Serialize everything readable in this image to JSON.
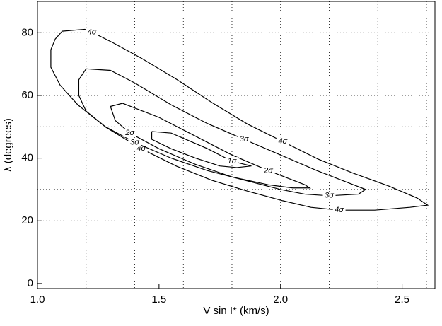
{
  "chart_data": {
    "type": "contour",
    "x_label": "V sin I* (km/s)",
    "y_label": "λ (degrees)",
    "xlim": [
      1.0,
      2.635
    ],
    "ylim": [
      -1.6,
      90
    ],
    "xticks": [
      {
        "value": 1.0,
        "label": "1.0"
      },
      {
        "value": 1.5,
        "label": "1.5"
      },
      {
        "value": 2.0,
        "label": "2.0"
      },
      {
        "value": 2.5,
        "label": "2.5"
      }
    ],
    "yticks": [
      0,
      20,
      40,
      60,
      80
    ],
    "xgrid": [
      1.2,
      1.4,
      1.6,
      1.8,
      2.0,
      2.2,
      2.4,
      2.6
    ],
    "ygrid": [
      10,
      20,
      30,
      40,
      50,
      60,
      70,
      80
    ],
    "grid": true,
    "series": [
      {
        "name": "4σ",
        "color": "#000000",
        "x": [
          1.195,
          1.224,
          1.311,
          1.427,
          1.573,
          1.718,
          1.863,
          2.009,
          2.154,
          2.299,
          2.445,
          2.561,
          2.605,
          2.532,
          2.387,
          2.241,
          2.125,
          2.009,
          1.863,
          1.718,
          1.573,
          1.427,
          1.282,
          1.166,
          1.093,
          1.055,
          1.055,
          1.073,
          1.102,
          1.195
        ],
        "y": [
          81.1,
          80.2,
          76.8,
          71.9,
          65.1,
          57.7,
          50.9,
          45.3,
          39.7,
          35.2,
          31.1,
          27.3,
          25.0,
          24.3,
          23.4,
          23.4,
          24.3,
          26.4,
          29.5,
          32.9,
          37.4,
          43.0,
          49.8,
          57.0,
          63.3,
          69.0,
          74.6,
          78.0,
          80.5,
          81.1
        ]
      },
      {
        "name": "3σ",
        "color": "#000000",
        "x": [
          1.2,
          1.3,
          1.4,
          1.55,
          1.7,
          1.85,
          2.0,
          2.15,
          2.3,
          2.35,
          2.32,
          2.2,
          2.1,
          2.0,
          1.85,
          1.7,
          1.55,
          1.4,
          1.28,
          1.2,
          1.17,
          1.17,
          1.2
        ],
        "y": [
          68.5,
          68,
          64,
          57,
          51,
          46,
          41,
          36,
          31.5,
          30,
          28.5,
          28,
          28.5,
          30,
          33,
          36,
          40,
          45,
          50,
          55,
          60,
          65,
          68.5
        ]
      },
      {
        "name": "2σ",
        "color": "#000000",
        "x": [
          1.3,
          1.35,
          1.5,
          1.65,
          1.8,
          1.95,
          2.1,
          2.12,
          2.05,
          1.95,
          1.8,
          1.65,
          1.5,
          1.38,
          1.32,
          1.3
        ],
        "y": [
          56.5,
          57.5,
          53,
          47,
          41,
          36,
          31.5,
          30.5,
          30.5,
          31.5,
          34,
          38,
          43,
          48,
          52,
          56.5
        ]
      },
      {
        "name": "1σ",
        "color": "#000000",
        "x": [
          1.47,
          1.55,
          1.7,
          1.8,
          1.88,
          1.82,
          1.75,
          1.65,
          1.55,
          1.47,
          1.47
        ],
        "y": [
          48.5,
          48,
          43,
          39,
          37.5,
          37,
          37.5,
          40,
          43,
          46,
          48.5
        ]
      }
    ]
  }
}
